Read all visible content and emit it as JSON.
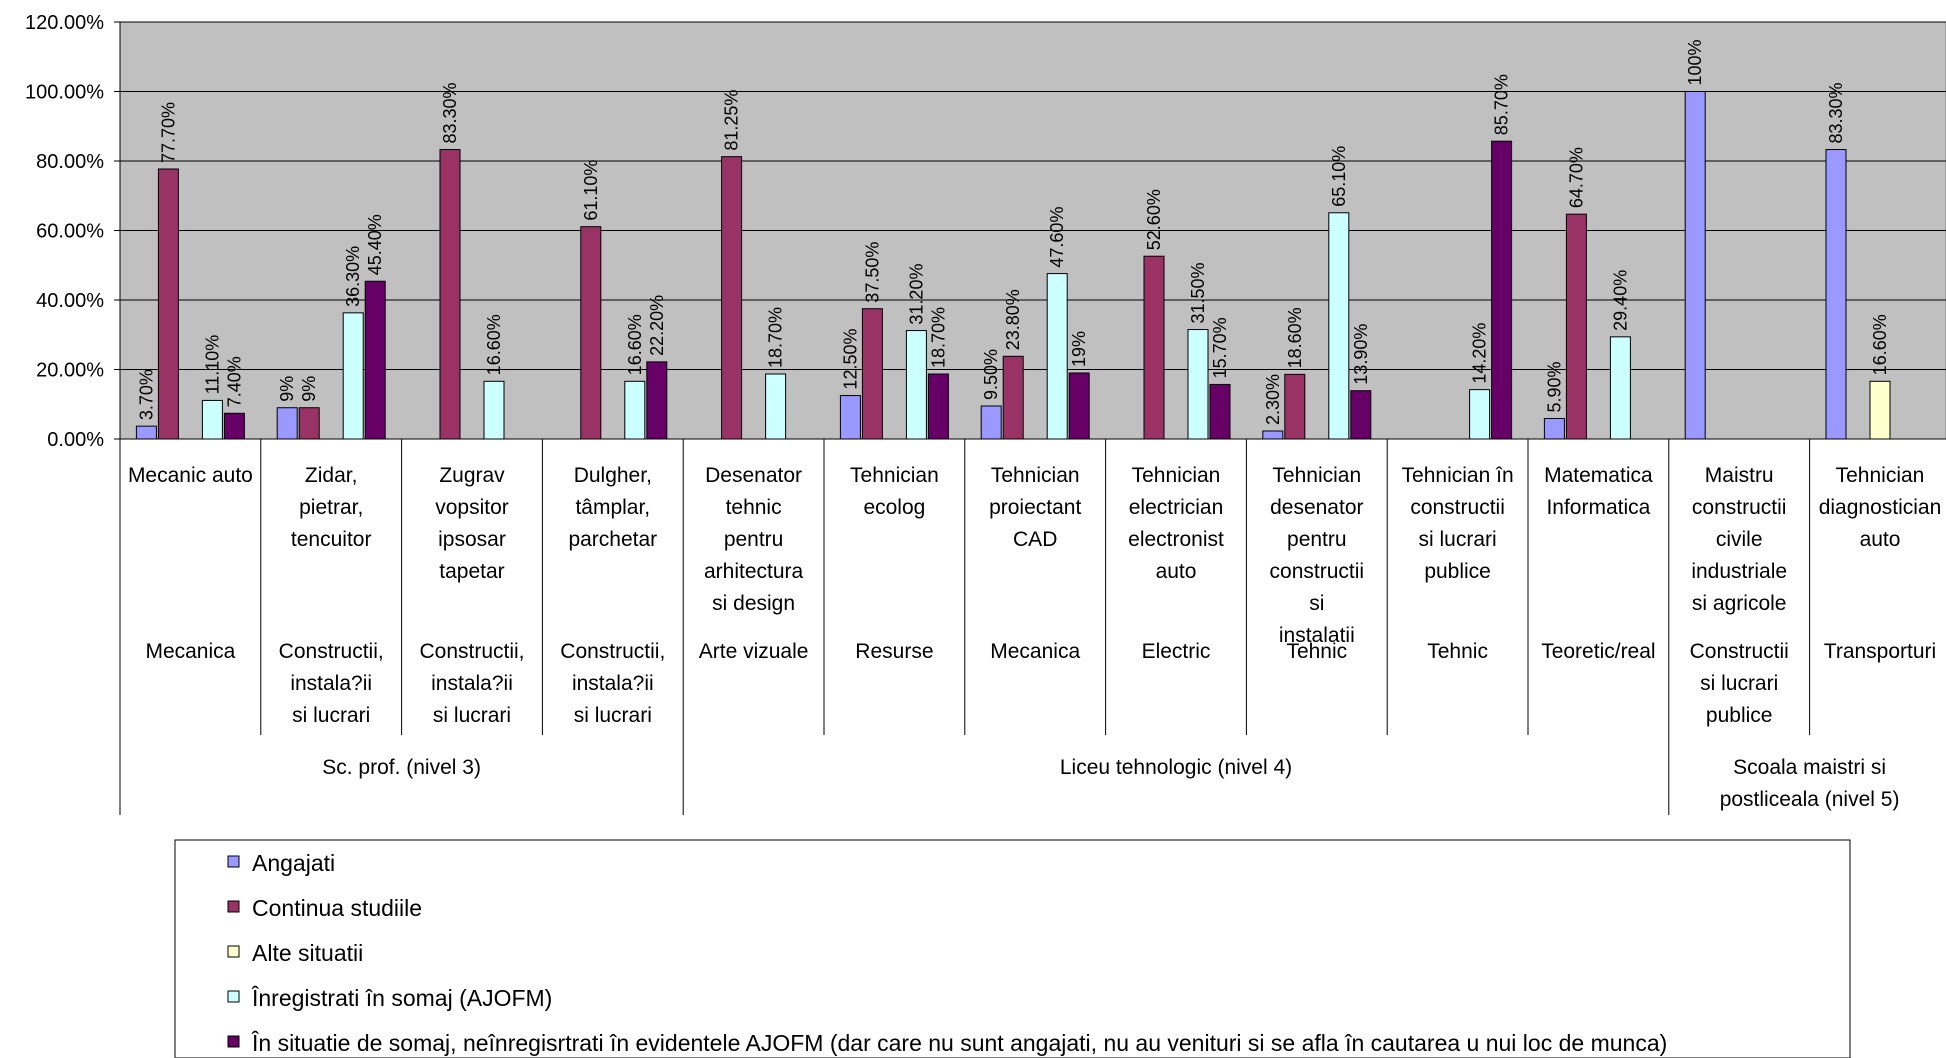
{
  "chart_data": {
    "type": "bar",
    "ylim": [
      0,
      120
    ],
    "y_ticks": [
      "0.00%",
      "20.00%",
      "40.00%",
      "60.00%",
      "80.00%",
      "100.00%",
      "120.00%"
    ],
    "grid": true,
    "legend_position": "bottom",
    "categories": [
      {
        "name": "Mecanic auto",
        "domain": "Mecanica",
        "level": "Sc. prof. (nivel 3)"
      },
      {
        "name": "Zidar, pietrar, tencuitor",
        "domain": "Constructii, instala?ii si lucrari",
        "level": "Sc. prof. (nivel 3)"
      },
      {
        "name": "Zugrav vopsitor ipsosar tapetar",
        "domain": "Constructii, instala?ii si lucrari",
        "level": "Sc. prof. (nivel 3)"
      },
      {
        "name": "Dulgher, tâmplar, parchetar",
        "domain": "Constructii, instala?ii si lucrari",
        "level": "Sc. prof. (nivel 3)"
      },
      {
        "name": "Desenator tehnic pentru arhitectura si design",
        "domain": "Arte vizuale",
        "level": "Liceu tehnologic (nivel 4)"
      },
      {
        "name": "Tehnician ecolog",
        "domain": "Resurse",
        "level": "Liceu tehnologic (nivel 4)"
      },
      {
        "name": "Tehnician proiectant CAD",
        "domain": "Mecanica",
        "level": "Liceu tehnologic (nivel 4)"
      },
      {
        "name": "Tehnician electrician electronist auto",
        "domain": "Electric",
        "level": "Liceu tehnologic (nivel 4)"
      },
      {
        "name": "Tehnician desenator pentru constructii si instalatii",
        "domain": "Tehnic",
        "level": "Liceu tehnologic (nivel 4)"
      },
      {
        "name": "Tehnician în constructii si lucrari publice",
        "domain": "Tehnic",
        "level": "Liceu tehnologic (nivel 4)"
      },
      {
        "name": "Matematica Informatica",
        "domain": "Teoretic/real",
        "level": "Liceu tehnologic (nivel 4)"
      },
      {
        "name": "Maistru constructii civile industriale si agricole",
        "domain": "Constructii si lucrari publice",
        "level": "Scoala maistri si postliceala (nivel 5)"
      },
      {
        "name": "Tehnician diagnostician auto",
        "domain": "Transporturi",
        "level": "Scoala maistri si postliceala (nivel 5)"
      }
    ],
    "level_groups": [
      {
        "label": "Sc. prof. (nivel 3)",
        "span": 4
      },
      {
        "label": "Liceu tehnologic (nivel 4)",
        "span": 7
      },
      {
        "label": "Scoala maistri si postliceala (nivel 5)",
        "span": 2
      }
    ],
    "series": [
      {
        "name": "Angajati",
        "color": "#9999FF",
        "values": [
          3.7,
          9,
          null,
          null,
          null,
          12.5,
          9.5,
          null,
          2.3,
          null,
          5.9,
          100,
          83.3
        ],
        "labels": [
          "3.70%",
          "9%",
          "",
          "",
          "",
          "12.50%",
          "9.50%",
          "",
          "2.30%",
          "",
          "5.90%",
          "100%",
          "83.30%"
        ]
      },
      {
        "name": "Continua studiile",
        "color": "#993366",
        "values": [
          77.7,
          9,
          83.3,
          61.1,
          81.25,
          37.5,
          23.8,
          52.6,
          18.6,
          null,
          64.7,
          null,
          null
        ],
        "labels": [
          "77.70%",
          "9%",
          "83.30%",
          "61.10%",
          "81.25%",
          "37.50%",
          "23.80%",
          "52.60%",
          "18.60%",
          "",
          "64.70%",
          "",
          ""
        ]
      },
      {
        "name": "Alte situatii",
        "color": "#FFFFCC",
        "values": [
          null,
          null,
          null,
          null,
          null,
          null,
          null,
          null,
          null,
          null,
          null,
          null,
          16.6
        ],
        "labels": [
          "",
          "",
          "",
          "",
          "",
          "",
          "",
          "",
          "",
          "",
          "",
          "",
          "16.60%"
        ]
      },
      {
        "name": "Înregistrati în somaj (AJOFM)",
        "color": "#CCFFFF",
        "values": [
          11.1,
          36.3,
          16.6,
          16.6,
          18.7,
          31.2,
          47.6,
          31.5,
          65.1,
          14.2,
          29.4,
          null,
          null
        ],
        "labels": [
          "11.10%",
          "36.30%",
          "16.60%",
          "16.60%",
          "18.70%",
          "31.20%",
          "47.60%",
          "31.50%",
          "65.10%",
          "14.20%",
          "29.40%",
          "",
          ""
        ]
      },
      {
        "name": "În situatie de somaj, neînregisrtrati în evidentele AJOFM (dar care nu sunt angajati, nu au venituri si se afla în cautarea u nui loc de munca)",
        "color": "#660066",
        "values": [
          7.4,
          45.4,
          null,
          22.2,
          null,
          18.7,
          19,
          15.7,
          13.9,
          85.7,
          null,
          null,
          null
        ],
        "labels": [
          "7.40%",
          "45.40%",
          "",
          "22.20%",
          "",
          "18.70%",
          "19%",
          "15.70%",
          "13.90%",
          "85.70%",
          "",
          "",
          ""
        ]
      }
    ]
  }
}
